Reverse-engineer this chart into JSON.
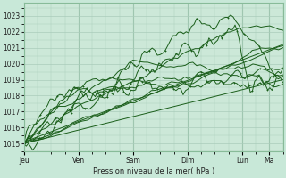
{
  "title": "",
  "xlabel": "Pression niveau de la mer( hPa )",
  "bg_color": "#c8e8d8",
  "plot_bg_color": "#cce8d8",
  "grid_color": "#aaccbb",
  "line_color": "#1a5e1a",
  "ylim": [
    1014.5,
    1023.8
  ],
  "xlim": [
    0,
    114
  ],
  "day_labels": [
    "Jeu",
    "Ven",
    "Sam",
    "Dim",
    "Lun",
    "Ma"
  ],
  "day_positions": [
    0,
    24,
    48,
    72,
    96,
    108
  ],
  "yticks": [
    1015,
    1016,
    1017,
    1018,
    1019,
    1020,
    1021,
    1022,
    1023
  ],
  "total_hours": 114
}
